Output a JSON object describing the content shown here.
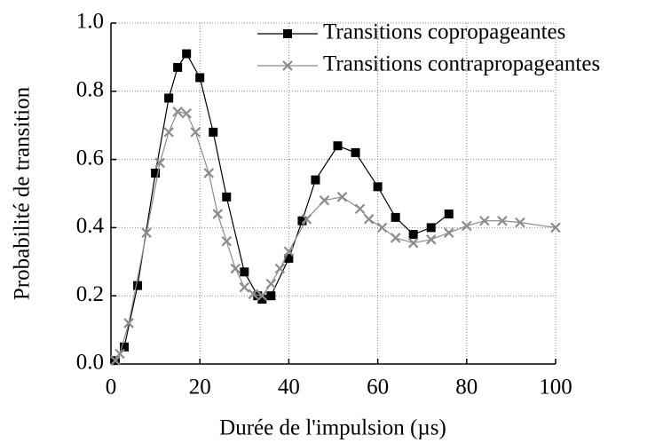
{
  "chart_data": {
    "type": "line",
    "x_label": "Durée de l'impulsion (µs)",
    "y_label": "Probabilité de transition",
    "xlim": [
      0,
      100
    ],
    "xticks": [
      0,
      20,
      40,
      60,
      80,
      100
    ],
    "ylim": [
      0,
      1.0
    ],
    "yticks": [
      {
        "value": 0,
        "label": "0.0"
      },
      {
        "value": 0.2,
        "label": "0.2"
      },
      {
        "value": 0.4,
        "label": "0.4"
      },
      {
        "value": 0.6,
        "label": "0.6"
      },
      {
        "value": 0.8,
        "label": "0.8"
      },
      {
        "value": 1.0,
        "label": "1.0"
      }
    ],
    "grid": true,
    "legend": "upper right",
    "series": [
      {
        "name": "Transitions copropageantes",
        "color": "#000000",
        "marker": "square",
        "x": [
          1,
          3,
          6,
          10,
          13,
          15,
          17,
          20,
          23,
          26,
          30,
          33,
          34,
          36,
          40,
          43,
          46,
          51,
          55,
          60,
          64,
          68,
          72,
          76
        ],
        "values": [
          0.01,
          0.05,
          0.23,
          0.56,
          0.78,
          0.87,
          0.91,
          0.84,
          0.68,
          0.49,
          0.27,
          0.2,
          0.19,
          0.2,
          0.31,
          0.42,
          0.54,
          0.64,
          0.62,
          0.52,
          0.43,
          0.38,
          0.4,
          0.44
        ]
      },
      {
        "name": "Transitions contrapropageantes",
        "color": "#8c8c8c",
        "marker": "x",
        "x": [
          1,
          2,
          4,
          8,
          11,
          13,
          15,
          17,
          19,
          22,
          24,
          26,
          28,
          30,
          32,
          34,
          36,
          38,
          40,
          44,
          48,
          52,
          56,
          58,
          61,
          64,
          68,
          72,
          76,
          80,
          84,
          88,
          92,
          100
        ],
        "values": [
          0.01,
          0.03,
          0.12,
          0.385,
          0.59,
          0.68,
          0.74,
          0.735,
          0.68,
          0.56,
          0.44,
          0.36,
          0.28,
          0.225,
          0.205,
          0.2,
          0.235,
          0.28,
          0.33,
          0.425,
          0.48,
          0.49,
          0.455,
          0.425,
          0.4,
          0.37,
          0.355,
          0.365,
          0.385,
          0.405,
          0.42,
          0.42,
          0.415,
          0.4
        ]
      }
    ]
  }
}
